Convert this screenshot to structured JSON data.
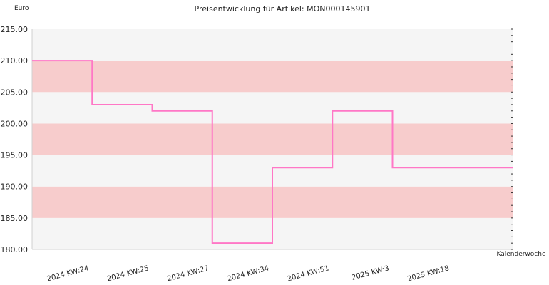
{
  "chart_data": {
    "type": "line",
    "title": "Preisentwicklung für Artikel: MON000145901",
    "ylabel": "Euro",
    "xlabel": "Kalenderwoche",
    "categories": [
      "2024 KW:24",
      "2024 KW:25",
      "2024 KW:27",
      "2024 KW:34",
      "2024 KW:51",
      "2025 KW:3",
      "2025 KW:18"
    ],
    "series": [
      {
        "values": [
          210.0,
          203.0,
          202.0,
          181.0,
          193.0,
          202.0,
          193.0
        ]
      }
    ],
    "ylim": [
      180,
      215
    ],
    "yticks": [
      "180.00",
      "185.00",
      "190.00",
      "195.00",
      "200.00",
      "205.00",
      "210.00",
      "215.00"
    ],
    "step": true,
    "grid": false,
    "legend": "none",
    "colors": {
      "line": "#ff77c6",
      "band_light": "#f5f5f5",
      "band_dark": "#f7cccc"
    }
  }
}
